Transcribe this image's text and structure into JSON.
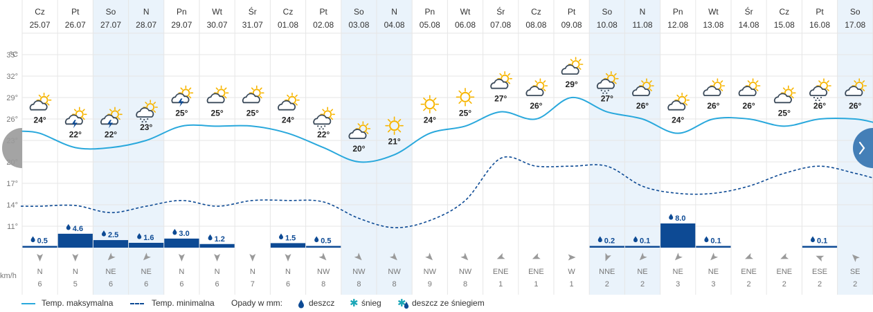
{
  "chart_data": {
    "type": "line",
    "y_unit": "°C",
    "wind_unit": "km/h",
    "ylim": [
      8,
      38
    ],
    "y_ticks": [
      11,
      14,
      17,
      20,
      23,
      26,
      29,
      32,
      35
    ],
    "y_tick_labels": [
      "11°",
      "14°",
      "17°",
      "20°",
      "23°",
      "26°",
      "29°",
      "32°",
      "35°"
    ],
    "days": [
      {
        "day": "Cz",
        "date": "25.07",
        "weekend": false,
        "tmax": 24,
        "tmax_label": "24°",
        "tmin": 13.8,
        "icon": "partly-cloudy-icon",
        "precip": 0.5,
        "precip_label": "0.5",
        "wind_dir": "N",
        "wind_speed": "6",
        "wind_deg": 180
      },
      {
        "day": "Pt",
        "date": "26.07",
        "weekend": false,
        "tmax": 22,
        "tmax_label": "22°",
        "tmin": 13.9,
        "icon": "thunderstorm-icon",
        "precip": 4.6,
        "precip_label": "4.6",
        "wind_dir": "N",
        "wind_speed": "5",
        "wind_deg": 180
      },
      {
        "day": "So",
        "date": "27.07",
        "weekend": true,
        "tmax": 22,
        "tmax_label": "22°",
        "tmin": 12.9,
        "icon": "thunderstorm-icon",
        "precip": 2.5,
        "precip_label": "2.5",
        "wind_dir": "NE",
        "wind_speed": "6",
        "wind_deg": 225
      },
      {
        "day": "N",
        "date": "28.07",
        "weekend": true,
        "tmax": 23,
        "tmax_label": "23°",
        "tmin": 13.8,
        "icon": "sun-rain-cloud-icon",
        "precip": 1.6,
        "precip_label": "1.6",
        "wind_dir": "NE",
        "wind_speed": "6",
        "wind_deg": 225
      },
      {
        "day": "Pn",
        "date": "29.07",
        "weekend": false,
        "tmax": 25,
        "tmax_label": "25°",
        "tmin": 14.6,
        "icon": "thunderstorm-sun-icon",
        "precip": 3.0,
        "precip_label": "3.0",
        "wind_dir": "N",
        "wind_speed": "6",
        "wind_deg": 180
      },
      {
        "day": "Wt",
        "date": "30.07",
        "weekend": false,
        "tmax": 25,
        "tmax_label": "25°",
        "tmin": 13.8,
        "icon": "partly-cloudy-icon",
        "precip": 1.2,
        "precip_label": "1.2",
        "wind_dir": "N",
        "wind_speed": "6",
        "wind_deg": 180
      },
      {
        "day": "Śr",
        "date": "31.07",
        "weekend": false,
        "tmax": 25,
        "tmax_label": "25°",
        "tmin": 14.6,
        "icon": "partly-cloudy-icon",
        "precip": 0,
        "precip_label": "",
        "wind_dir": "N",
        "wind_speed": "7",
        "wind_deg": 180
      },
      {
        "day": "Cz",
        "date": "01.08",
        "weekend": false,
        "tmax": 24,
        "tmax_label": "24°",
        "tmin": 14.6,
        "icon": "partly-cloudy-icon",
        "precip": 1.5,
        "precip_label": "1.5",
        "wind_dir": "N",
        "wind_speed": "6",
        "wind_deg": 180
      },
      {
        "day": "Pt",
        "date": "02.08",
        "weekend": false,
        "tmax": 22,
        "tmax_label": "22°",
        "tmin": 14.4,
        "icon": "sun-rain-cloud-icon",
        "precip": 0.5,
        "precip_label": "0.5",
        "wind_dir": "NW",
        "wind_speed": "8",
        "wind_deg": 135
      },
      {
        "day": "So",
        "date": "03.08",
        "weekend": true,
        "tmax": 20,
        "tmax_label": "20°",
        "tmin": 12.1,
        "icon": "partly-cloudy-icon",
        "precip": 0,
        "precip_label": "",
        "wind_dir": "NW",
        "wind_speed": "8",
        "wind_deg": 135
      },
      {
        "day": "N",
        "date": "04.08",
        "weekend": true,
        "tmax": 21,
        "tmax_label": "21°",
        "tmin": 10.8,
        "icon": "sun-icon",
        "precip": 0,
        "precip_label": "",
        "wind_dir": "NW",
        "wind_speed": "8",
        "wind_deg": 135
      },
      {
        "day": "Pn",
        "date": "05.08",
        "weekend": false,
        "tmax": 24,
        "tmax_label": "24°",
        "tmin": 11.8,
        "icon": "sun-icon",
        "precip": 0,
        "precip_label": "",
        "wind_dir": "NW",
        "wind_speed": "9",
        "wind_deg": 135
      },
      {
        "day": "Wt",
        "date": "06.08",
        "weekend": false,
        "tmax": 25,
        "tmax_label": "25°",
        "tmin": 14.6,
        "icon": "sun-icon",
        "precip": 0,
        "precip_label": "",
        "wind_dir": "NW",
        "wind_speed": "8",
        "wind_deg": 135
      },
      {
        "day": "Śr",
        "date": "07.08",
        "weekend": false,
        "tmax": 27,
        "tmax_label": "27°",
        "tmin": 20.5,
        "icon": "partly-cloudy-icon",
        "precip": 0,
        "precip_label": "",
        "wind_dir": "ENE",
        "wind_speed": "1",
        "wind_deg": 247
      },
      {
        "day": "Cz",
        "date": "08.08",
        "weekend": false,
        "tmax": 26,
        "tmax_label": "26°",
        "tmin": 19.4,
        "icon": "partly-cloudy-icon",
        "precip": 0,
        "precip_label": "",
        "wind_dir": "ENE",
        "wind_speed": "1",
        "wind_deg": 247
      },
      {
        "day": "Pt",
        "date": "09.08",
        "weekend": false,
        "tmax": 29,
        "tmax_label": "29°",
        "tmin": 19.4,
        "icon": "partly-cloudy-icon",
        "precip": 0,
        "precip_label": "",
        "wind_dir": "W",
        "wind_speed": "1",
        "wind_deg": 90
      },
      {
        "day": "So",
        "date": "10.08",
        "weekend": true,
        "tmax": 27,
        "tmax_label": "27°",
        "tmin": 19.4,
        "icon": "sun-rain-cloud-icon",
        "precip": 0.2,
        "precip_label": "0.2",
        "wind_dir": "NNE",
        "wind_speed": "2",
        "wind_deg": 202
      },
      {
        "day": "N",
        "date": "11.08",
        "weekend": true,
        "tmax": 26,
        "tmax_label": "26°",
        "tmin": 16.6,
        "icon": "partly-cloudy-icon",
        "precip": 0.1,
        "precip_label": "0.1",
        "wind_dir": "NE",
        "wind_speed": "2",
        "wind_deg": 225
      },
      {
        "day": "Pn",
        "date": "12.08",
        "weekend": false,
        "tmax": 24,
        "tmax_label": "24°",
        "tmin": 15.6,
        "icon": "partly-cloudy-icon",
        "precip": 8.0,
        "precip_label": "8.0",
        "wind_dir": "NE",
        "wind_speed": "3",
        "wind_deg": 225
      },
      {
        "day": "Wt",
        "date": "13.08",
        "weekend": false,
        "tmax": 26,
        "tmax_label": "26°",
        "tmin": 15.6,
        "icon": "partly-cloudy-icon",
        "precip": 0.1,
        "precip_label": "0.1",
        "wind_dir": "NE",
        "wind_speed": "3",
        "wind_deg": 225
      },
      {
        "day": "Śr",
        "date": "14.08",
        "weekend": false,
        "tmax": 26,
        "tmax_label": "26°",
        "tmin": 16.6,
        "icon": "partly-cloudy-icon",
        "precip": 0,
        "precip_label": "",
        "wind_dir": "ENE",
        "wind_speed": "2",
        "wind_deg": 247
      },
      {
        "day": "Cz",
        "date": "15.08",
        "weekend": false,
        "tmax": 25,
        "tmax_label": "25°",
        "tmin": 18.4,
        "icon": "partly-cloudy-icon",
        "precip": 0,
        "precip_label": "",
        "wind_dir": "ENE",
        "wind_speed": "2",
        "wind_deg": 247
      },
      {
        "day": "Pt",
        "date": "16.08",
        "weekend": false,
        "tmax": 26,
        "tmax_label": "26°",
        "tmin": 19.4,
        "icon": "sun-rain-cloud-icon",
        "precip": 0.1,
        "precip_label": "0.1",
        "wind_dir": "ESE",
        "wind_speed": "2",
        "wind_deg": 292
      },
      {
        "day": "So",
        "date": "17.08",
        "weekend": true,
        "tmax": 26,
        "tmax_label": "26°",
        "tmin": 18.4,
        "icon": "partly-cloudy-icon",
        "precip": 0,
        "precip_label": "",
        "wind_dir": "SE",
        "wind_speed": "2",
        "wind_deg": 315
      }
    ],
    "legend": {
      "tmax": "Temp. maksymalna",
      "tmin": "Temp. minimalna",
      "precip_title": "Opady w mm:",
      "rain": "deszcz",
      "snow": "śnieg",
      "rain_snow": "deszcz ze śniegiem"
    }
  },
  "colors": {
    "tmax_line": "#29a8dc",
    "tmin_line": "#0d4a94",
    "precip_bar": "#0d4a94",
    "weekend_band": "#eaf3fb",
    "grid": "#e6e6e6",
    "sun": "#f7b500",
    "nav_left": "#9a9a9a",
    "nav_right": "#3b78b3",
    "snow": "#1aa6b7"
  }
}
